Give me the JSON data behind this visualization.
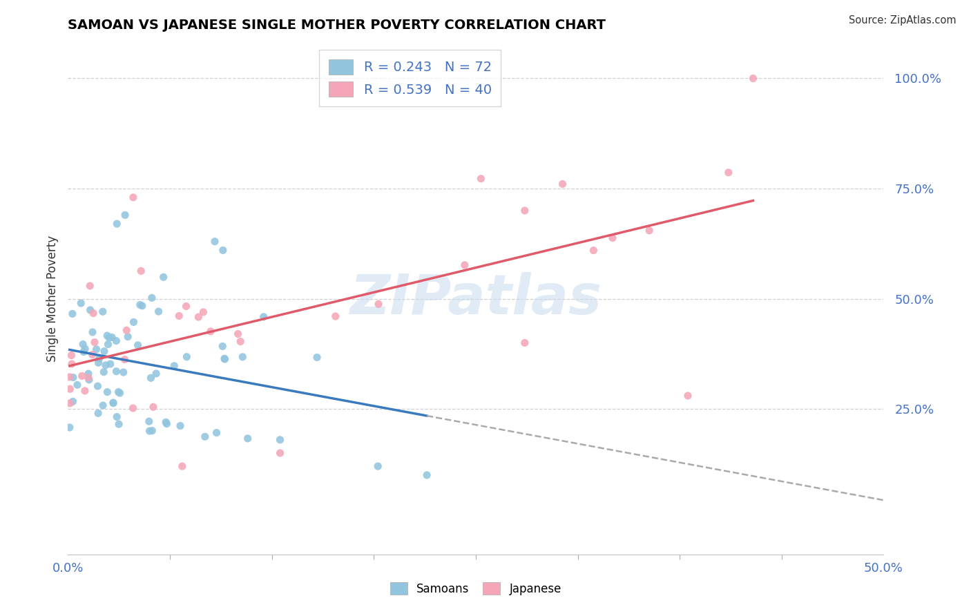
{
  "title": "SAMOAN VS JAPANESE SINGLE MOTHER POVERTY CORRELATION CHART",
  "source": "Source: ZipAtlas.com",
  "xlim": [
    0.0,
    0.5
  ],
  "ylim": [
    -0.08,
    1.08
  ],
  "samoan_dot_color": "#92c5de",
  "japanese_dot_color": "#f4a6b8",
  "samoan_line_color": "#3a7abf",
  "japanese_line_color": "#e05a6a",
  "watermark_color": "#c8dcf0",
  "legend_samoan_r": "0.243",
  "legend_samoan_n": "72",
  "legend_japanese_r": "0.539",
  "legend_japanese_n": "40",
  "legend_bottom_samoan": "Samoans",
  "legend_bottom_japanese": "Japanese",
  "background_color": "#ffffff",
  "grid_color": "#d0d0d0",
  "ytick_labels": [
    "25.0%",
    "50.0%",
    "75.0%",
    "100.0%"
  ],
  "ytick_vals": [
    0.25,
    0.5,
    0.75,
    1.0
  ],
  "xtick_labels": [
    "0.0%",
    "50.0%"
  ],
  "xtick_vals": [
    0.0,
    0.5
  ],
  "title_fontsize": 14,
  "tick_fontsize": 13,
  "legend_fontsize": 14
}
